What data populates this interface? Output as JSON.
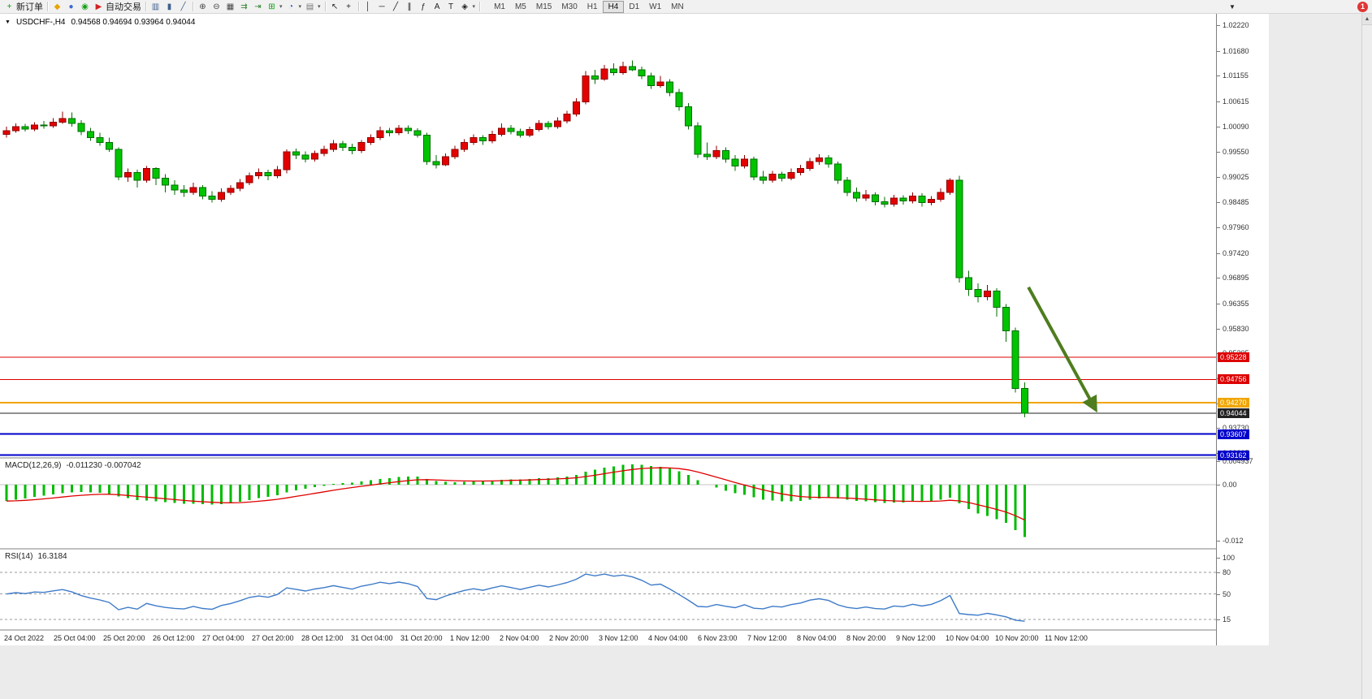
{
  "toolbar": {
    "notification_count": "1",
    "items": [
      {
        "name": "new-order-button",
        "label": "新订单",
        "glyph": "+",
        "color": "#0b9e0b"
      },
      {
        "type": "sep"
      },
      {
        "name": "market-watch-button",
        "glyph": "◆",
        "color": "#e8a400"
      },
      {
        "name": "profiles-button",
        "glyph": "●",
        "color": "#3a6ad0"
      },
      {
        "name": "refresh-button",
        "glyph": "◉",
        "color": "#14a014"
      },
      {
        "name": "autotrading-button",
        "label": "自动交易",
        "glyph": "▶",
        "color": "#d22222"
      },
      {
        "type": "sep"
      },
      {
        "name": "bar-chart-button",
        "glyph": "▥",
        "color": "#3f5f8f"
      },
      {
        "name": "candlestick-chart-button",
        "glyph": "▮",
        "color": "#3f5f8f"
      },
      {
        "name": "line-chart-button",
        "glyph": "╱",
        "color": "#3f5f8f"
      },
      {
        "type": "sep"
      },
      {
        "name": "zoom-in-button",
        "glyph": "⊕",
        "color": "#444444"
      },
      {
        "name": "zoom-out-button",
        "glyph": "⊖",
        "color": "#444444"
      },
      {
        "name": "tile-windows-button",
        "glyph": "▦",
        "color": "#444444"
      },
      {
        "name": "auto-scroll-button",
        "glyph": "⇉",
        "color": "#2f7f2f"
      },
      {
        "name": "chart-shift-button",
        "glyph": "⇥",
        "color": "#2f7f2f"
      },
      {
        "name": "indicators-button",
        "glyph": "⊞",
        "color": "#12a012",
        "caret": true
      },
      {
        "name": "periods-button",
        "glyph": "◔",
        "color": "#2050c0",
        "caret": true
      },
      {
        "name": "templates-button",
        "glyph": "▤",
        "color": "#777777",
        "caret": true
      },
      {
        "type": "sep"
      },
      {
        "name": "cursor-button",
        "glyph": "↖",
        "color": "#222222"
      },
      {
        "name": "crosshair-button",
        "glyph": "+",
        "color": "#222222"
      },
      {
        "type": "sep"
      },
      {
        "name": "vertical-line-button",
        "glyph": "│",
        "color": "#222222"
      },
      {
        "name": "horizontal-line-button",
        "glyph": "─",
        "color": "#222222"
      },
      {
        "name": "trendline-button",
        "glyph": "╱",
        "color": "#222222"
      },
      {
        "name": "channel-button",
        "glyph": "∥",
        "color": "#222222"
      },
      {
        "name": "fibonacci-button",
        "glyph": "ƒ",
        "color": "#222222"
      },
      {
        "name": "text-button",
        "glyph": "A",
        "color": "#222222"
      },
      {
        "name": "text-label-button",
        "glyph": "T",
        "color": "#222222"
      },
      {
        "name": "shapes-button",
        "glyph": "◈",
        "color": "#222222",
        "caret": true
      },
      {
        "type": "sep"
      }
    ],
    "timeframes": [
      {
        "label": "M1"
      },
      {
        "label": "M5"
      },
      {
        "label": "M15"
      },
      {
        "label": "M30"
      },
      {
        "label": "H1"
      },
      {
        "label": "H4",
        "active": true
      },
      {
        "label": "D1"
      },
      {
        "label": "W1"
      },
      {
        "label": "MN"
      }
    ]
  },
  "window": {
    "title": "USDCHF-,H4",
    "ohlc": "0.94568 0.94694 0.93964 0.94044"
  },
  "chart_data": {
    "type": "candlestick",
    "symbol": "USDCHF",
    "timeframe": "H4",
    "bull_color": "#e40000",
    "bull_border": "#8f0000",
    "bear_color": "#00c400",
    "bear_border": "#006e00",
    "price_ticks": [
      "1.02220",
      "1.01680",
      "1.01155",
      "1.00615",
      "1.00090",
      "0.99550",
      "0.99025",
      "0.98485",
      "0.97960",
      "0.97420",
      "0.96895",
      "0.96355",
      "0.95830",
      "0.95305",
      "0.94780",
      "0.94255",
      "0.93730",
      "0.93205"
    ],
    "levels": [
      {
        "price": 0.95228,
        "label": "0.95228",
        "color": "#dd0000",
        "width": 1
      },
      {
        "price": 0.94756,
        "label": "0.94756",
        "color": "#dd0000",
        "width": 1
      },
      {
        "price": 0.9427,
        "label": "0.94270",
        "color": "#f0a500",
        "width": 2
      },
      {
        "price": 0.94044,
        "label": "0.94044",
        "color": "#222222",
        "width": 1
      },
      {
        "price": 0.93607,
        "label": "0.93607",
        "color": "#0000cc",
        "width": 2
      },
      {
        "price": 0.93162,
        "label": "0.93162",
        "color": "#0000cc",
        "width": 2
      }
    ],
    "arrow": {
      "from_bar": 109.4,
      "from_price": 0.967,
      "to_bar": 116.6,
      "to_price": 0.9412,
      "color": "#4e7d1e"
    },
    "candles": [
      [
        0.9992,
        1.0008,
        0.9985,
        1.0
      ],
      [
        1.0,
        1.0015,
        0.9995,
        1.0008
      ],
      [
        1.0008,
        1.0014,
        0.9998,
        1.0003
      ],
      [
        1.0003,
        1.0018,
        0.9999,
        1.0012
      ],
      [
        1.0012,
        1.002,
        1.0004,
        1.001
      ],
      [
        1.001,
        1.0026,
        1.0006,
        1.0018
      ],
      [
        1.0018,
        1.004,
        1.0014,
        1.0025
      ],
      [
        1.0025,
        1.0038,
        1.0008,
        1.0015
      ],
      [
        1.0015,
        1.0022,
        0.999,
        0.9998
      ],
      [
        0.9998,
        1.0006,
        0.9978,
        0.9985
      ],
      [
        0.9985,
        0.9995,
        0.9968,
        0.9975
      ],
      [
        0.9975,
        0.9985,
        0.9955,
        0.996
      ],
      [
        0.996,
        0.9965,
        0.9895,
        0.9902
      ],
      [
        0.9902,
        0.992,
        0.9892,
        0.9912
      ],
      [
        0.9912,
        0.9918,
        0.988,
        0.9895
      ],
      [
        0.9895,
        0.9925,
        0.989,
        0.992
      ],
      [
        0.992,
        0.9923,
        0.9885,
        0.99
      ],
      [
        0.99,
        0.9908,
        0.987,
        0.9885
      ],
      [
        0.9885,
        0.9895,
        0.9865,
        0.9875
      ],
      [
        0.9875,
        0.9885,
        0.986,
        0.987
      ],
      [
        0.987,
        0.989,
        0.9865,
        0.988
      ],
      [
        0.988,
        0.9885,
        0.9855,
        0.9862
      ],
      [
        0.9862,
        0.9872,
        0.9848,
        0.9855
      ],
      [
        0.9855,
        0.9878,
        0.985,
        0.987
      ],
      [
        0.987,
        0.9885,
        0.9865,
        0.9878
      ],
      [
        0.9878,
        0.9898,
        0.9872,
        0.989
      ],
      [
        0.989,
        0.9912,
        0.9885,
        0.9905
      ],
      [
        0.9905,
        0.992,
        0.9898,
        0.9912
      ],
      [
        0.9912,
        0.9918,
        0.9895,
        0.9905
      ],
      [
        0.9905,
        0.9925,
        0.99,
        0.9918
      ],
      [
        0.9918,
        0.996,
        0.991,
        0.9955
      ],
      [
        0.9955,
        0.9962,
        0.994,
        0.9948
      ],
      [
        0.9948,
        0.9956,
        0.9933,
        0.994
      ],
      [
        0.994,
        0.9958,
        0.9935,
        0.9952
      ],
      [
        0.9952,
        0.9968,
        0.9946,
        0.996
      ],
      [
        0.996,
        0.998,
        0.9955,
        0.9972
      ],
      [
        0.9972,
        0.9978,
        0.9957,
        0.9965
      ],
      [
        0.9965,
        0.9972,
        0.995,
        0.9958
      ],
      [
        0.9958,
        0.998,
        0.9953,
        0.9975
      ],
      [
        0.9975,
        0.9992,
        0.997,
        0.9985
      ],
      [
        0.9985,
        1.0008,
        0.998,
        1.0
      ],
      [
        1.0,
        1.0006,
        0.9988,
        0.9995
      ],
      [
        0.9995,
        1.0012,
        0.999,
        1.0005
      ],
      [
        1.0005,
        1.0011,
        0.9993,
        1.0
      ],
      [
        1.0,
        1.0005,
        0.9985,
        0.999
      ],
      [
        0.999,
        0.9995,
        0.9928,
        0.9935
      ],
      [
        0.9935,
        0.9948,
        0.992,
        0.9928
      ],
      [
        0.9928,
        0.9952,
        0.9925,
        0.9945
      ],
      [
        0.9945,
        0.9968,
        0.994,
        0.996
      ],
      [
        0.996,
        0.9982,
        0.9955,
        0.9975
      ],
      [
        0.9975,
        0.9992,
        0.997,
        0.9985
      ],
      [
        0.9985,
        0.999,
        0.997,
        0.9978
      ],
      [
        0.9978,
        1.0,
        0.9973,
        0.9992
      ],
      [
        0.9992,
        1.0015,
        0.9988,
        1.0005
      ],
      [
        1.0005,
        1.0012,
        0.9992,
        0.9998
      ],
      [
        0.9998,
        1.0004,
        0.9985,
        0.999
      ],
      [
        0.999,
        1.0008,
        0.9986,
        1.0002
      ],
      [
        1.0002,
        1.0022,
        0.9998,
        1.0015
      ],
      [
        1.0015,
        1.002,
        1.0002,
        1.0008
      ],
      [
        1.0008,
        1.0028,
        1.0004,
        1.002
      ],
      [
        1.002,
        1.0042,
        1.0015,
        1.0035
      ],
      [
        1.0035,
        1.0068,
        1.003,
        1.006
      ],
      [
        1.006,
        1.0125,
        1.0055,
        1.0115
      ],
      [
        1.0115,
        1.0128,
        1.0098,
        1.0108
      ],
      [
        1.0108,
        1.0138,
        1.0105,
        1.013
      ],
      [
        1.013,
        1.0142,
        1.0116,
        1.0122
      ],
      [
        1.0122,
        1.0145,
        1.0118,
        1.0135
      ],
      [
        1.0135,
        1.0148,
        1.0125,
        1.0128
      ],
      [
        1.0128,
        1.0135,
        1.0108,
        1.0115
      ],
      [
        1.0115,
        1.0122,
        1.0088,
        1.0095
      ],
      [
        1.0095,
        1.0115,
        1.009,
        1.0102
      ],
      [
        1.0102,
        1.0108,
        1.0072,
        1.008
      ],
      [
        1.008,
        1.0088,
        1.0042,
        1.005
      ],
      [
        1.005,
        1.0058,
        1.0002,
        1.001
      ],
      [
        1.001,
        1.0018,
        0.9942,
        0.995
      ],
      [
        0.995,
        0.9975,
        0.9938,
        0.9945
      ],
      [
        0.9945,
        0.9968,
        0.994,
        0.9958
      ],
      [
        0.9958,
        0.9965,
        0.9932,
        0.994
      ],
      [
        0.994,
        0.9948,
        0.9915,
        0.9925
      ],
      [
        0.9925,
        0.9948,
        0.992,
        0.994
      ],
      [
        0.994,
        0.9945,
        0.9895,
        0.9902
      ],
      [
        0.9902,
        0.9915,
        0.9888,
        0.9895
      ],
      [
        0.9895,
        0.9915,
        0.989,
        0.9908
      ],
      [
        0.9908,
        0.9913,
        0.9893,
        0.99
      ],
      [
        0.99,
        0.992,
        0.9895,
        0.9912
      ],
      [
        0.9912,
        0.9928,
        0.9906,
        0.992
      ],
      [
        0.992,
        0.9942,
        0.9915,
        0.9935
      ],
      [
        0.9935,
        0.995,
        0.9928,
        0.9942
      ],
      [
        0.9942,
        0.9948,
        0.9922,
        0.993
      ],
      [
        0.993,
        0.9935,
        0.9888,
        0.9895
      ],
      [
        0.9895,
        0.9902,
        0.9862,
        0.987
      ],
      [
        0.987,
        0.988,
        0.985,
        0.9858
      ],
      [
        0.9858,
        0.9875,
        0.9852,
        0.9865
      ],
      [
        0.9865,
        0.987,
        0.9842,
        0.985
      ],
      [
        0.985,
        0.986,
        0.9838,
        0.9845
      ],
      [
        0.9845,
        0.9865,
        0.984,
        0.9858
      ],
      [
        0.9858,
        0.9864,
        0.9844,
        0.9852
      ],
      [
        0.9852,
        0.987,
        0.9847,
        0.9862
      ],
      [
        0.9862,
        0.9868,
        0.984,
        0.9848
      ],
      [
        0.9848,
        0.9862,
        0.9842,
        0.9855
      ],
      [
        0.9855,
        0.9878,
        0.985,
        0.987
      ],
      [
        0.987,
        0.99,
        0.9865,
        0.9895
      ],
      [
        0.9895,
        0.9905,
        0.968,
        0.969
      ],
      [
        0.969,
        0.9705,
        0.9652,
        0.9665
      ],
      [
        0.9665,
        0.9678,
        0.9638,
        0.965
      ],
      [
        0.965,
        0.9675,
        0.9642,
        0.9662
      ],
      [
        0.9662,
        0.9668,
        0.9608,
        0.9628
      ],
      [
        0.9628,
        0.9635,
        0.9555,
        0.9578
      ],
      [
        0.9578,
        0.9585,
        0.9448,
        0.94568
      ],
      [
        0.94568,
        0.94694,
        0.93964,
        0.94044
      ]
    ],
    "macd": {
      "label": "MACD(12,26,9)",
      "values_text": "-0.011230 -0.007042",
      "histogram_color": "#00bb00",
      "signal_color": "#e00000",
      "axis": [
        {
          "text": "0.004937",
          "value": 0.004937
        },
        {
          "text": "0.00",
          "value": 0
        },
        {
          "text": "-0.012",
          "value": -0.012
        }
      ]
    },
    "rsi": {
      "label": "RSI(14)",
      "value_text": "16.3184",
      "line_color": "#3e7bc8",
      "levels": [
        80,
        50,
        15
      ],
      "axis": [
        {
          "text": "100",
          "value": 100
        },
        {
          "text": "80",
          "value": 80
        },
        {
          "text": "50",
          "value": 50
        },
        {
          "text": "15",
          "value": 15
        }
      ]
    },
    "time_labels": [
      "24 Oct 2022",
      "25 Oct 04:00",
      "25 Oct 20:00",
      "26 Oct 12:00",
      "27 Oct 04:00",
      "27 Oct 20:00",
      "28 Oct 12:00",
      "31 Oct 04:00",
      "31 Oct 20:00",
      "1 Nov 12:00",
      "2 Nov 04:00",
      "2 Nov 20:00",
      "3 Nov 12:00",
      "4 Nov 04:00",
      "6 Nov 23:00",
      "7 Nov 12:00",
      "8 Nov 04:00",
      "8 Nov 20:00",
      "9 Nov 12:00",
      "10 Nov 04:00",
      "10 Nov 20:00",
      "11 Nov 12:00"
    ]
  }
}
